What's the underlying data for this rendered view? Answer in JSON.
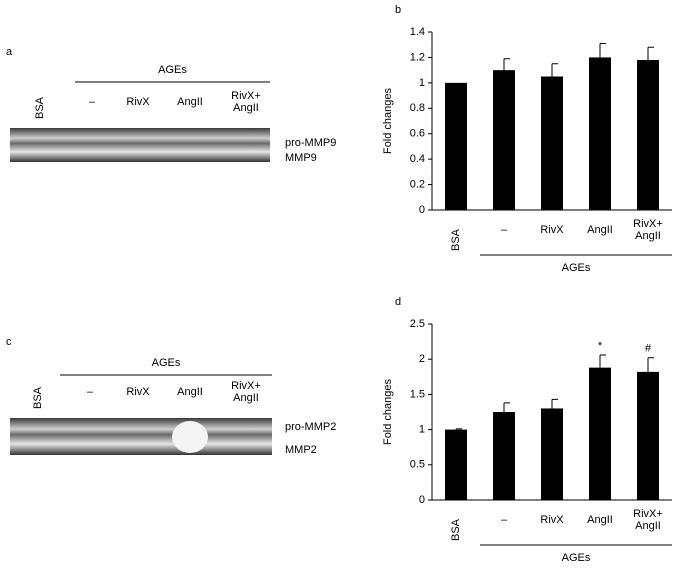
{
  "chart_data": [
    {
      "type": "bar",
      "panel_label": "b",
      "ylabel": "Fold changes",
      "categories": [
        "BSA",
        "–",
        "RivX",
        "AngII",
        "RivX+ AngII"
      ],
      "values": [
        1,
        1.1,
        1.05,
        1.2,
        1.18
      ],
      "errors": [
        null,
        0.09,
        0.1,
        0.11,
        0.1
      ],
      "color": "#000000",
      "ylim": [
        0,
        1.4
      ],
      "yticks": [
        0,
        0.2,
        0.4,
        0.6,
        0.8,
        1,
        1.2,
        1.4
      ],
      "group_label": "AGEs",
      "annotations": [
        null,
        null,
        null,
        null,
        null
      ]
    },
    {
      "type": "bar",
      "panel_label": "d",
      "ylabel": "Fold changes",
      "categories": [
        "BSA",
        "–",
        "RivX",
        "AngII",
        "RivX+ AngII"
      ],
      "values": [
        1,
        1.25,
        1.3,
        1.88,
        1.82
      ],
      "errors": [
        0.01,
        0.13,
        0.13,
        0.18,
        0.2
      ],
      "color": "#000000",
      "ylim": [
        0,
        2.5
      ],
      "yticks": [
        0,
        0.5,
        1,
        1.5,
        2,
        2.5
      ],
      "group_label": "AGEs",
      "annotations": [
        null,
        null,
        null,
        "*",
        "#"
      ]
    }
  ],
  "gels": [
    {
      "panel_label": "a",
      "group_label": "AGEs",
      "lanes": [
        "BSA",
        "–",
        "RivX",
        "AngII",
        "RivX+ AngII"
      ],
      "bands": [
        "pro-MMP9",
        "MMP9"
      ]
    },
    {
      "panel_label": "c",
      "group_label": "AGEs",
      "lanes": [
        "BSA",
        "–",
        "RivX",
        "AngII",
        "RivX+ AngII"
      ],
      "bands": [
        "pro-MMP2",
        "MMP2"
      ]
    }
  ]
}
